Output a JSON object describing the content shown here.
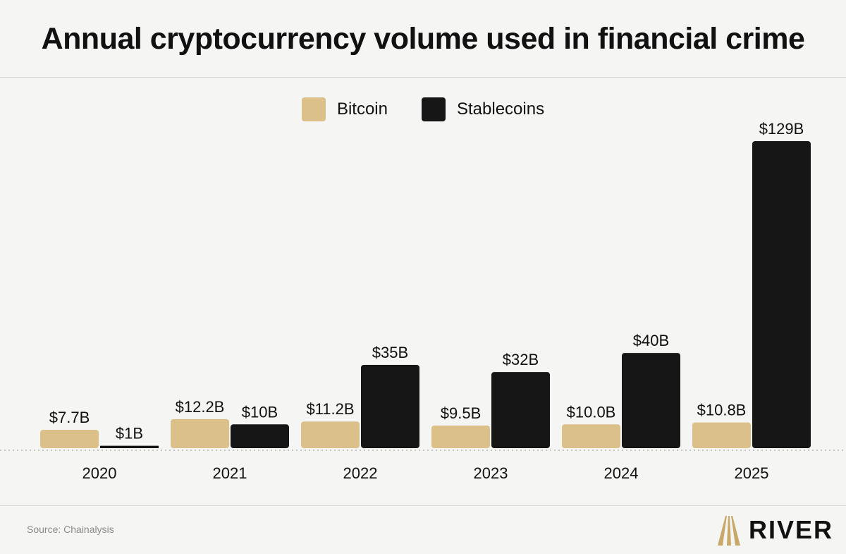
{
  "chart_data": {
    "type": "bar",
    "title": "Annual cryptocurrency volume used in financial crime",
    "categories": [
      "2020",
      "2021",
      "2022",
      "2023",
      "2024",
      "2025"
    ],
    "series": [
      {
        "name": "Bitcoin",
        "color": "#dbc08a",
        "values": [
          7.7,
          12.2,
          11.2,
          9.5,
          10.0,
          10.8
        ],
        "labels": [
          "$7.7B",
          "$12.2B",
          "$11.2B",
          "$9.5B",
          "$10.0B",
          "$10.8B"
        ]
      },
      {
        "name": "Stablecoins",
        "color": "#161616",
        "values": [
          1,
          10,
          35,
          32,
          40,
          129
        ],
        "labels": [
          "$1B",
          "$10B",
          "$35B",
          "$32B",
          "$40B",
          "$129B"
        ]
      }
    ],
    "ylim": [
      0,
      129
    ],
    "grid": false,
    "legend_position": "top-center"
  },
  "footer": {
    "source": "Source: Chainalysis",
    "brand": "RIVER",
    "logo_color": "#c9a96a"
  }
}
